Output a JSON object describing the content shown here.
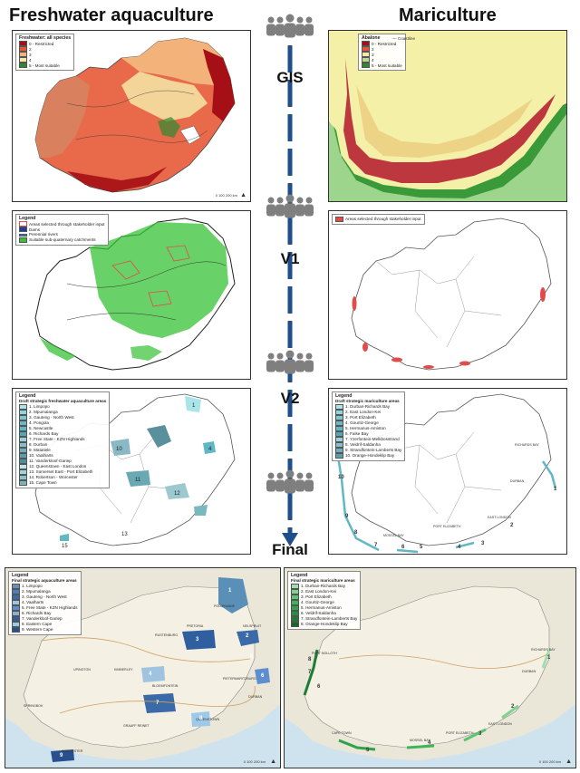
{
  "titles": {
    "freshwater": "Freshwater aquaculture",
    "mariculture": "Mariculture"
  },
  "stages": [
    "GIS",
    "V1",
    "V2",
    "Final"
  ],
  "icons": {
    "stakeholders": "people-group-icon",
    "flow": "down-arrow-icon",
    "north": "north-arrow-icon"
  },
  "colors": {
    "arrow": "#1f4e8c",
    "people": "#7f7f7f",
    "restricted": "#a50f15",
    "suitable": "#2ca02c",
    "teal": "#5fb8c4",
    "sea": "#a6cee3"
  },
  "gis_fresh": {
    "legend_title": "Freshwater: all species",
    "items": [
      "0 - Restricted",
      "2",
      "3",
      "4",
      "5 - Most suitable"
    ],
    "colors": [
      "#a50f15",
      "#e6553a",
      "#f2b27a",
      "#f5e7a8",
      "#2f8a2f"
    ],
    "scale": "0   100   200 km"
  },
  "gis_mari": {
    "legend_title": "Abalone",
    "items": [
      "0 - Restricted",
      "2",
      "3",
      "4",
      "5 - Most suitable"
    ],
    "colors": [
      "#a50f15",
      "#e6553a",
      "#f5e7a8",
      "#b8d98a",
      "#2f8a2f"
    ],
    "coastline": "Coastline"
  },
  "v1_fresh": {
    "legend_title": "Legend",
    "items": [
      "Areas selected through stakeholder input",
      "Dams",
      "Perennial rivers",
      "Suitable sub-quaternary catchments"
    ],
    "colors": [
      "#ffffff",
      "#1f3f9f",
      "#3d6fd6",
      "#35c235"
    ]
  },
  "v1_mari": {
    "items": [
      "Areas selected through stakeholder input"
    ],
    "colors": [
      "#e34a4a"
    ]
  },
  "v2_fresh": {
    "legend_title": "Legend",
    "sub_title": "Draft strategic freshwater aquaculture areas",
    "items": [
      "1. Limpopo",
      "2. Mpumalanga",
      "3. Gauteng - North West",
      "4. Pongola",
      "5. Newcastle",
      "6. Richards Bay",
      "7. Free State - KZN Highlands",
      "8. Durban",
      "9. Matatiele",
      "10. Vaalharts",
      "11. Vanderkloof-Gariep",
      "12. Queenstown - East London",
      "13. Somerset East - Port Elizabeth",
      "14. Robertson - Worcester",
      "15. Cape Town"
    ],
    "labels": [
      "1",
      "4",
      "10",
      "11",
      "12",
      "13",
      "15"
    ]
  },
  "v2_mari": {
    "legend_title": "Legend",
    "sub_title": "Draft strategic mariculture areas",
    "items": [
      "1. Durban-Richards Bay",
      "2. East London-Kei",
      "3. Port Elizabeth",
      "4. Gourtiz-George",
      "5. Hermanus-Arniston",
      "6. False Bay",
      "7. Yzerfontein-Melkbosstrand",
      "8. Veldrif-Saldanha",
      "9. Strandfontein-Lamberts Bay",
      "10. Orange-Hondeklip Bay"
    ],
    "labels": [
      "1",
      "2",
      "3",
      "4",
      "5",
      "6",
      "7",
      "8",
      "9",
      "10"
    ],
    "towns": [
      "RICHARDS BAY",
      "DURBAN",
      "EAST LONDON",
      "PORT ELIZABETH",
      "MOSSEL BAY"
    ]
  },
  "final_fresh": {
    "legend_title": "Legend",
    "sub_title": "Final strategic aquaculture areas",
    "items": [
      "1. Limpopo",
      "2. Mpumalanga",
      "3. Gauteng - North West",
      "4. Vaalharts",
      "5. Free State - KZN Highlands",
      "6. Richards Bay",
      "7. Vanderkloof-Gariep",
      "8. Eastern Cape",
      "9. Western Cape"
    ],
    "colors": [
      "#6a8fb0",
      "#4a7fc0",
      "#3a6aa8",
      "#a0c4e0",
      "#5d8fd0",
      "#8ab0d8",
      "#2f5f9f",
      "#9ccae8",
      "#2a4f8f"
    ],
    "towns": [
      "POLOKWANE",
      "RUSTENBURG",
      "PRETORIA",
      "NELSPRUIT",
      "KIMBERLEY",
      "BLOEMFONTEIN",
      "UPINGTON",
      "SPRINGBOK",
      "PIETERMARITZBURG",
      "DURBAN",
      "GRAAFF REINET",
      "QUEENSTOWN",
      "WORCESTER"
    ],
    "labels": [
      "1",
      "2",
      "3",
      "4",
      "5",
      "6",
      "7",
      "8",
      "9"
    ],
    "scale": "0   100   200 km"
  },
  "final_mari": {
    "legend_title": "Legend",
    "sub_title": "Final strategic mariculture areas",
    "items": [
      "1. Durban-Richards Bay",
      "2. East London-Kei",
      "3. Port Elizabeth",
      "4. Gourtiz-George",
      "5. Hermanus-Arniston",
      "6. Veldrif-Saldanha",
      "7. Strandfontein-Lamberts Bay",
      "8. Orange-Hondeklip Bay"
    ],
    "colors": [
      "#a0e0b0",
      "#7ed38f",
      "#5cc470",
      "#3fb55a",
      "#2ea34a",
      "#24913f",
      "#1d7d34",
      "#156a2a"
    ],
    "towns": [
      "PORT NOLLOTH",
      "RICHARDS BAY",
      "DURBAN",
      "EAST LONDON",
      "PORT ELIZABETH",
      "CAPE TOWN",
      "MOSSEL BAY"
    ],
    "labels": [
      "1",
      "2",
      "3",
      "4",
      "5",
      "6",
      "7",
      "8"
    ],
    "scale": "0   100   200 km"
  }
}
